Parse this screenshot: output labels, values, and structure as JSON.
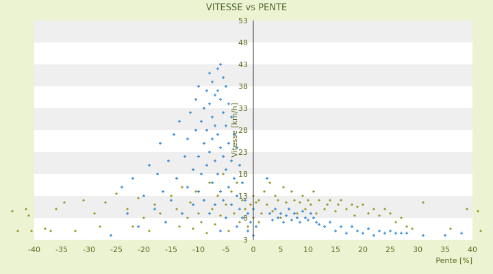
{
  "chart_data": {
    "type": "scatter",
    "title": "VITESSE vs PENTE",
    "xlabel": "Pente [%]",
    "ylabel": "Vitesse [km/h]",
    "xlim": [
      -40,
      40
    ],
    "ylim": [
      3,
      53
    ],
    "x_ticks": [
      -40,
      -35,
      -30,
      -25,
      -20,
      -15,
      -10,
      -5,
      0,
      5,
      10,
      15,
      20,
      25,
      30,
      35,
      40
    ],
    "y_ticks": [
      3,
      8,
      13,
      18,
      23,
      28,
      33,
      38,
      43,
      48,
      53
    ],
    "grid": "horizontal alternating bands",
    "legend": "none",
    "series": [
      {
        "color": "#9a9a2a",
        "marker": "small diamond",
        "points": [
          [
            -44,
            9.5
          ],
          [
            -43,
            5
          ],
          [
            -41.5,
            10
          ],
          [
            -41,
            8.5
          ],
          [
            -40.5,
            5
          ],
          [
            -38,
            5.5
          ],
          [
            -37,
            5
          ],
          [
            -36,
            10
          ],
          [
            -34.5,
            11.5
          ],
          [
            -32.5,
            5
          ],
          [
            -31,
            12
          ],
          [
            -29,
            9
          ],
          [
            -28,
            6
          ],
          [
            -27,
            11.5
          ],
          [
            -25,
            13.5
          ],
          [
            -23,
            10
          ],
          [
            -22,
            6
          ],
          [
            -21,
            12.5
          ],
          [
            -20,
            8
          ],
          [
            -19,
            5
          ],
          [
            -18,
            11
          ],
          [
            -17,
            9
          ],
          [
            -16,
            7
          ],
          [
            -15,
            13
          ],
          [
            -14,
            10
          ],
          [
            -13.5,
            6
          ],
          [
            -13,
            15
          ],
          [
            -12,
            8
          ],
          [
            -11.5,
            11.5
          ],
          [
            -11,
            5.5
          ],
          [
            -10.5,
            14
          ],
          [
            -10,
            9
          ],
          [
            -9.5,
            7
          ],
          [
            -9,
            12
          ],
          [
            -8.5,
            4.5
          ],
          [
            -8,
            16
          ],
          [
            -7.5,
            10
          ],
          [
            -7,
            6.5
          ],
          [
            -6.5,
            13
          ],
          [
            -6,
            8.5
          ],
          [
            -5.5,
            18
          ],
          [
            -5,
            11
          ],
          [
            -4.5,
            5
          ],
          [
            -4,
            14
          ],
          [
            -3.5,
            9
          ],
          [
            -3,
            16
          ],
          [
            -2.5,
            7
          ],
          [
            -2,
            12
          ],
          [
            -1.5,
            10
          ],
          [
            -1,
            6
          ],
          [
            -0.5,
            11
          ],
          [
            0,
            13
          ],
          [
            0,
            8
          ],
          [
            0.5,
            11.5
          ],
          [
            1,
            7
          ],
          [
            1,
            12
          ],
          [
            1.5,
            9
          ],
          [
            2,
            14
          ],
          [
            2.5,
            11
          ],
          [
            3,
            16
          ],
          [
            3.5,
            9.5
          ],
          [
            4,
            13
          ],
          [
            4.5,
            12
          ],
          [
            5,
            8
          ],
          [
            5.5,
            15
          ],
          [
            6,
            11.5
          ],
          [
            6.5,
            10
          ],
          [
            7,
            14
          ],
          [
            7.5,
            12
          ],
          [
            8,
            9
          ],
          [
            8.5,
            11.5
          ],
          [
            9,
            13
          ],
          [
            9.5,
            10
          ],
          [
            10,
            12
          ],
          [
            10.5,
            11
          ],
          [
            11,
            14
          ],
          [
            11.5,
            9
          ],
          [
            12,
            12
          ],
          [
            13,
            10
          ],
          [
            13.5,
            11
          ],
          [
            14,
            12
          ],
          [
            15,
            9.5
          ],
          [
            15.5,
            11
          ],
          [
            16,
            12
          ],
          [
            17,
            10
          ],
          [
            18,
            11
          ],
          [
            18.5,
            8.5
          ],
          [
            19,
            10.5
          ],
          [
            20,
            11
          ],
          [
            21,
            9
          ],
          [
            22,
            10
          ],
          [
            23,
            8.5
          ],
          [
            24,
            10
          ],
          [
            25,
            9
          ],
          [
            26,
            7
          ],
          [
            27,
            8
          ],
          [
            28,
            6
          ],
          [
            29,
            5.5
          ],
          [
            31,
            11.5
          ],
          [
            36,
            5.5
          ],
          [
            39,
            10
          ],
          [
            41,
            9.5
          ],
          [
            41.5,
            5
          ]
        ]
      },
      {
        "color": "#3a8fd8",
        "marker": "small plus",
        "points": [
          [
            -26,
            4
          ],
          [
            -24,
            15
          ],
          [
            -23,
            9
          ],
          [
            -22,
            17
          ],
          [
            -21,
            6
          ],
          [
            -20,
            13
          ],
          [
            -19,
            20
          ],
          [
            -18,
            10
          ],
          [
            -17.5,
            18
          ],
          [
            -17,
            25
          ],
          [
            -16.5,
            14
          ],
          [
            -16,
            7
          ],
          [
            -15.5,
            21
          ],
          [
            -15,
            12
          ],
          [
            -14.5,
            27
          ],
          [
            -14,
            17
          ],
          [
            -13.5,
            30
          ],
          [
            -13,
            9
          ],
          [
            -12.5,
            22
          ],
          [
            -12,
            15
          ],
          [
            -12,
            26
          ],
          [
            -11.5,
            32
          ],
          [
            -11,
            19
          ],
          [
            -11,
            11
          ],
          [
            -10.5,
            28
          ],
          [
            -10.5,
            35
          ],
          [
            -10,
            22
          ],
          [
            -10,
            14
          ],
          [
            -10,
            38
          ],
          [
            -9.5,
            30
          ],
          [
            -9.5,
            18
          ],
          [
            -9,
            33
          ],
          [
            -9,
            25
          ],
          [
            -9,
            12
          ],
          [
            -8.5,
            37
          ],
          [
            -8.5,
            28
          ],
          [
            -8.5,
            20
          ],
          [
            -8,
            41
          ],
          [
            -8,
            34
          ],
          [
            -8,
            23
          ],
          [
            -8,
            9
          ],
          [
            -7.5,
            39
          ],
          [
            -7.5,
            31
          ],
          [
            -7.5,
            26
          ],
          [
            -7.5,
            16
          ],
          [
            -7,
            36
          ],
          [
            -7,
            29
          ],
          [
            -7,
            21
          ],
          [
            -7,
            11
          ],
          [
            -6.5,
            42
          ],
          [
            -6.5,
            37
          ],
          [
            -6.5,
            27
          ],
          [
            -6.5,
            18
          ],
          [
            -6,
            43
          ],
          [
            -6,
            35
          ],
          [
            -6,
            24
          ],
          [
            -6,
            14
          ],
          [
            -6,
            5
          ],
          [
            -5.5,
            40
          ],
          [
            -5.5,
            32
          ],
          [
            -5.5,
            22
          ],
          [
            -5.5,
            12
          ],
          [
            -5,
            38
          ],
          [
            -5,
            29
          ],
          [
            -5,
            19
          ],
          [
            -5,
            8
          ],
          [
            -4.5,
            34
          ],
          [
            -4.5,
            25
          ],
          [
            -4.5,
            15
          ],
          [
            -4,
            31
          ],
          [
            -4,
            21
          ],
          [
            -4,
            11
          ],
          [
            -3.5,
            27
          ],
          [
            -3.5,
            17
          ],
          [
            -3,
            24
          ],
          [
            -3,
            13
          ],
          [
            -3,
            6
          ],
          [
            -2.5,
            20
          ],
          [
            -2.5,
            10
          ],
          [
            -2,
            16
          ],
          [
            -2,
            8
          ],
          [
            -1.5,
            12
          ],
          [
            -1,
            9
          ],
          [
            -1,
            5
          ],
          [
            -0.5,
            7
          ],
          [
            0,
            4
          ],
          [
            0,
            10
          ],
          [
            0.5,
            6
          ],
          [
            2.5,
            17
          ],
          [
            3,
            9
          ],
          [
            3.5,
            7.5
          ],
          [
            4,
            10
          ],
          [
            4.5,
            8
          ],
          [
            5,
            9
          ],
          [
            5.5,
            7
          ],
          [
            6,
            8.5
          ],
          [
            6.5,
            10
          ],
          [
            7,
            7.5
          ],
          [
            7.5,
            9
          ],
          [
            8,
            8
          ],
          [
            8.5,
            7
          ],
          [
            9,
            9.5
          ],
          [
            9.5,
            8
          ],
          [
            10,
            7.5
          ],
          [
            10.5,
            9
          ],
          [
            11,
            8
          ],
          [
            11.5,
            7
          ],
          [
            12,
            6.5
          ],
          [
            13,
            6
          ],
          [
            14,
            7
          ],
          [
            15,
            5
          ],
          [
            16,
            6
          ],
          [
            17,
            4.5
          ],
          [
            18,
            6
          ],
          [
            19,
            5
          ],
          [
            20,
            4.5
          ],
          [
            21,
            5.5
          ],
          [
            22,
            4
          ],
          [
            23,
            5
          ],
          [
            24,
            4.5
          ],
          [
            25,
            5
          ],
          [
            26,
            4.5
          ],
          [
            27,
            4.5
          ],
          [
            28,
            4.5
          ],
          [
            31,
            4
          ],
          [
            35,
            4
          ],
          [
            38,
            4.5
          ]
        ]
      }
    ]
  }
}
